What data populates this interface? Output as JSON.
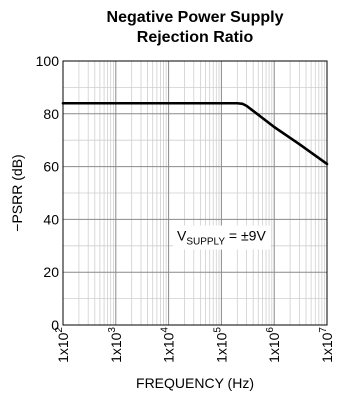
{
  "chart_data": {
    "type": "line",
    "title_lines": [
      "Negative Power Supply",
      "Rejection Ratio"
    ],
    "xlabel": "FREQUENCY (Hz)",
    "ylabel": "−PSRR (dB)",
    "x_scale": "log",
    "xlim": [
      100,
      10000000
    ],
    "ylim": [
      0,
      100
    ],
    "grid": true,
    "x_ticks": [
      {
        "value": 100,
        "base": "1x10",
        "exp": "2"
      },
      {
        "value": 1000,
        "base": "1x10",
        "exp": "3"
      },
      {
        "value": 10000,
        "base": "1x10",
        "exp": "4"
      },
      {
        "value": 100000,
        "base": "1x10",
        "exp": "5"
      },
      {
        "value": 1000000,
        "base": "1x10",
        "exp": "6"
      },
      {
        "value": 10000000,
        "base": "1x10",
        "exp": "7"
      }
    ],
    "y_ticks": [
      "0",
      "20",
      "40",
      "60",
      "80",
      "100"
    ],
    "series": [
      {
        "x": [
          100,
          1000,
          10000,
          100000,
          200000,
          250000,
          300000,
          1000000,
          3000000,
          10000000
        ],
        "y": [
          84,
          84,
          84,
          84,
          84,
          83.8,
          83,
          75,
          68.5,
          61
        ],
        "color": "#000000"
      }
    ],
    "annotation": {
      "prefix": "V",
      "subscript": "SUPPLY",
      "suffix": " = ±9V",
      "x": 100000,
      "y": 32
    }
  }
}
